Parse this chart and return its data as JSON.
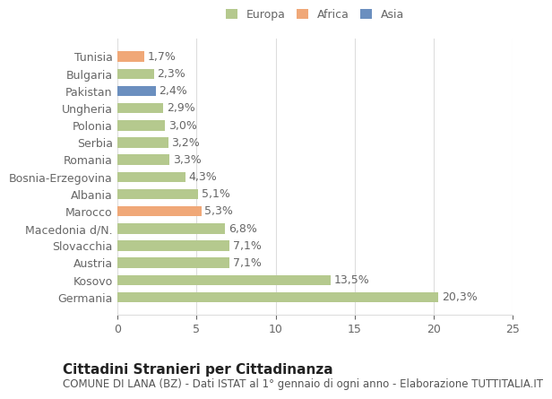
{
  "categories": [
    "Germania",
    "Kosovo",
    "Austria",
    "Slovacchia",
    "Macedonia d/N.",
    "Marocco",
    "Albania",
    "Bosnia-Erzegovina",
    "Romania",
    "Serbia",
    "Polonia",
    "Ungheria",
    "Pakistan",
    "Bulgaria",
    "Tunisia"
  ],
  "values": [
    20.3,
    13.5,
    7.1,
    7.1,
    6.8,
    5.3,
    5.1,
    4.3,
    3.3,
    3.2,
    3.0,
    2.9,
    2.4,
    2.3,
    1.7
  ],
  "labels": [
    "20,3%",
    "13,5%",
    "7,1%",
    "7,1%",
    "6,8%",
    "5,3%",
    "5,1%",
    "4,3%",
    "3,3%",
    "3,2%",
    "3,0%",
    "2,9%",
    "2,4%",
    "2,3%",
    "1,7%"
  ],
  "colors": [
    "#b5c98e",
    "#b5c98e",
    "#b5c98e",
    "#b5c98e",
    "#b5c98e",
    "#f0a878",
    "#b5c98e",
    "#b5c98e",
    "#b5c98e",
    "#b5c98e",
    "#b5c98e",
    "#b5c98e",
    "#6b8fbf",
    "#b5c98e",
    "#f0a878"
  ],
  "legend_labels": [
    "Europa",
    "Africa",
    "Asia"
  ],
  "legend_colors": [
    "#b5c98e",
    "#f0a878",
    "#6b8fbf"
  ],
  "xlim": [
    0,
    25
  ],
  "xticks": [
    0,
    5,
    10,
    15,
    20,
    25
  ],
  "title": "Cittadini Stranieri per Cittadinanza",
  "subtitle": "COMUNE DI LANA (BZ) - Dati ISTAT al 1° gennaio di ogni anno - Elaborazione TUTTITALIA.IT",
  "bg_color": "#ffffff",
  "grid_color": "#dddddd",
  "bar_height": 0.6,
  "label_fontsize": 9,
  "tick_fontsize": 9,
  "title_fontsize": 11,
  "subtitle_fontsize": 8.5
}
